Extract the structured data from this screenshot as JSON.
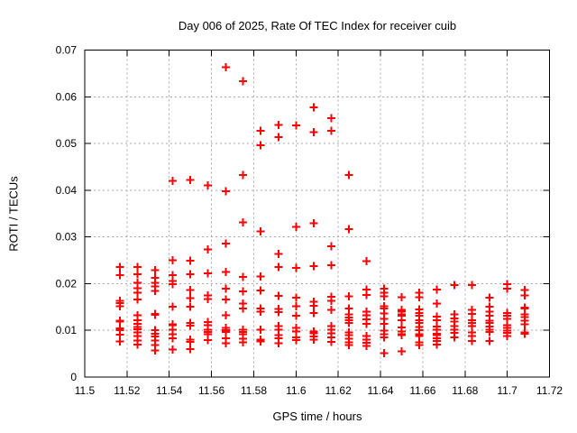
{
  "page": {
    "background": "#ffffff",
    "text_color": "#000000",
    "frame_color": "#000000"
  },
  "chart_data": {
    "type": "scatter",
    "title": "Day 006 of 2025, Rate Of TEC Index for receiver cuib",
    "xlabel": "GPS time / hours",
    "ylabel": "ROTI / TECUs",
    "xlim": [
      11.5,
      11.72
    ],
    "ylim": [
      0,
      0.07
    ],
    "xtick_values": [
      11.5,
      11.52,
      11.54,
      11.56,
      11.58,
      11.6,
      11.62,
      11.64,
      11.66,
      11.68,
      11.7,
      11.72
    ],
    "xtick_labels": [
      "11.5",
      "11.52",
      "11.54",
      "11.56",
      "11.58",
      "11.6",
      "11.62",
      "11.64",
      "11.66",
      "11.68",
      "11.7",
      "11.72"
    ],
    "ytick_values": [
      0,
      0.01,
      0.02,
      0.03,
      0.04,
      0.05,
      0.06,
      0.07
    ],
    "ytick_labels": [
      "0",
      "0.01",
      "0.02",
      "0.03",
      "0.04",
      "0.05",
      "0.06",
      "0.07"
    ],
    "grid": true,
    "grid_color": "#a8a8a8",
    "legend": "none",
    "marker_shape": "plus",
    "marker_color": "#ff0000",
    "series": [
      {
        "name": "ROTI",
        "epochs": [
          {
            "t": 11.5167,
            "roti": [
              0.0236,
              0.0218,
              0.0163,
              0.0158,
              0.0152,
              0.0121,
              0.0119,
              0.0104,
              0.01,
              0.0091,
              0.0076
            ]
          },
          {
            "t": 11.525,
            "roti": [
              0.0236,
              0.022,
              0.0202,
              0.019,
              0.0181,
              0.0166,
              0.0132,
              0.0122,
              0.0114,
              0.0107,
              0.0102,
              0.0096,
              0.0088,
              0.0078,
              0.007
            ]
          },
          {
            "t": 11.5333,
            "roti": [
              0.0229,
              0.0212,
              0.0202,
              0.0194,
              0.0184,
              0.0135,
              0.0133,
              0.01,
              0.0093,
              0.0087,
              0.0078,
              0.0069,
              0.0057
            ]
          },
          {
            "t": 11.5417,
            "roti": [
              0.042,
              0.025,
              0.0218,
              0.0206,
              0.0199,
              0.0151,
              0.0113,
              0.0111,
              0.0101,
              0.0092,
              0.0083,
              0.0059
            ]
          },
          {
            "t": 11.55,
            "roti": [
              0.0422,
              0.0249,
              0.022,
              0.0186,
              0.0169,
              0.0151,
              0.0116,
              0.011,
              0.008,
              0.0075,
              0.006
            ]
          },
          {
            "t": 11.5583,
            "roti": [
              0.041,
              0.0273,
              0.0222,
              0.0175,
              0.0167,
              0.0118,
              0.0111,
              0.0101,
              0.0097,
              0.0092,
              0.0079
            ]
          },
          {
            "t": 11.5667,
            "roti": [
              0.0663,
              0.0398,
              0.0286,
              0.0225,
              0.0189,
              0.0166,
              0.0132,
              0.0105,
              0.01,
              0.0097,
              0.0083,
              0.0072
            ]
          },
          {
            "t": 11.575,
            "roti": [
              0.0633,
              0.0433,
              0.0331,
              0.0214,
              0.0183,
              0.0157,
              0.0147,
              0.0101,
              0.0097,
              0.0092,
              0.0082,
              0.0074
            ]
          },
          {
            "t": 11.5833,
            "roti": [
              0.0527,
              0.0496,
              0.0312,
              0.0215,
              0.0185,
              0.0147,
              0.014,
              0.0101,
              0.008,
              0.0076
            ]
          },
          {
            "t": 11.5917,
            "roti": [
              0.054,
              0.0514,
              0.0264,
              0.0236,
              0.0174,
              0.0146,
              0.0139,
              0.0109,
              0.0101,
              0.009,
              0.0083,
              0.0072
            ]
          },
          {
            "t": 11.6,
            "roti": [
              0.0539,
              0.0322,
              0.0234,
              0.017,
              0.0152,
              0.0131,
              0.0105,
              0.0098,
              0.0085,
              0.0079
            ]
          },
          {
            "t": 11.6083,
            "roti": [
              0.0577,
              0.0524,
              0.0329,
              0.0238,
              0.0161,
              0.0153,
              0.0137,
              0.0098,
              0.0094,
              0.0087,
              0.008
            ]
          },
          {
            "t": 11.6167,
            "roti": [
              0.0554,
              0.0527,
              0.028,
              0.0239,
              0.0172,
              0.0163,
              0.0144,
              0.0109,
              0.0101,
              0.0094,
              0.0085,
              0.0075
            ]
          },
          {
            "t": 11.625,
            "roti": [
              0.0433,
              0.0317,
              0.0173,
              0.0147,
              0.0134,
              0.0127,
              0.0122,
              0.0116,
              0.0096,
              0.009,
              0.0082,
              0.0074,
              0.0069
            ]
          },
          {
            "t": 11.6333,
            "roti": [
              0.0248,
              0.0187,
              0.0176,
              0.014,
              0.0132,
              0.0124,
              0.0114,
              0.0088,
              0.008,
              0.0073,
              0.0067
            ]
          },
          {
            "t": 11.6417,
            "roti": [
              0.0189,
              0.0181,
              0.0173,
              0.0152,
              0.0147,
              0.0136,
              0.0125,
              0.0114,
              0.0099,
              0.0092,
              0.0085,
              0.0051
            ]
          },
          {
            "t": 11.65,
            "roti": [
              0.0171,
              0.0144,
              0.014,
              0.0134,
              0.0131,
              0.0122,
              0.0106,
              0.0098,
              0.0092,
              0.009,
              0.0055
            ]
          },
          {
            "t": 11.6583,
            "roti": [
              0.0181,
              0.0171,
              0.0145,
              0.0137,
              0.0131,
              0.0122,
              0.0116,
              0.0107,
              0.01,
              0.0092,
              0.0088,
              0.0074,
              0.0069
            ]
          },
          {
            "t": 11.6667,
            "roti": [
              0.0187,
              0.0157,
              0.0129,
              0.0122,
              0.0108,
              0.0101,
              0.0093,
              0.009,
              0.0083,
              0.0077,
              0.007
            ]
          },
          {
            "t": 11.675,
            "roti": [
              0.0197,
              0.0134,
              0.0126,
              0.0119,
              0.0109,
              0.0101,
              0.0095,
              0.0085
            ]
          },
          {
            "t": 11.6833,
            "roti": [
              0.0197,
              0.0144,
              0.0135,
              0.0122,
              0.0116,
              0.0109,
              0.0096,
              0.0088,
              0.0077
            ]
          },
          {
            "t": 11.6917,
            "roti": [
              0.017,
              0.0151,
              0.014,
              0.0131,
              0.0121,
              0.0116,
              0.0108,
              0.0101,
              0.0097,
              0.0077
            ]
          },
          {
            "t": 11.7,
            "roti": [
              0.0199,
              0.0189,
              0.0137,
              0.0131,
              0.0125,
              0.0111,
              0.0105,
              0.0099,
              0.0095,
              0.0088
            ]
          },
          {
            "t": 11.7083,
            "roti": [
              0.0186,
              0.0175,
              0.0149,
              0.0147,
              0.0134,
              0.0128,
              0.0121,
              0.0113,
              0.0096,
              0.0093
            ]
          }
        ]
      }
    ]
  }
}
